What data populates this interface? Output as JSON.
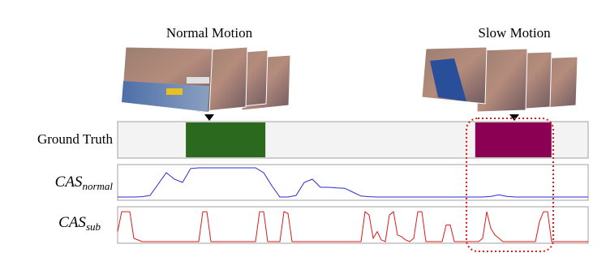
{
  "labels": {
    "normal_motion": "Normal Motion",
    "slow_motion": "Slow Motion",
    "ground_truth": "Ground Truth",
    "cas_normal": {
      "base": "CAS",
      "sub": "normal"
    },
    "cas_sub": {
      "base": "CAS",
      "sub": "sub"
    }
  },
  "timeline": {
    "xlim": [
      0,
      1
    ]
  },
  "ground_truth": {
    "segments": [
      {
        "start": 0.145,
        "end": 0.314,
        "color": "#2b6a1e"
      },
      {
        "start": 0.76,
        "end": 0.922,
        "color": "#8c0054"
      }
    ]
  },
  "cas_normal": {
    "color": "#2b2bd0",
    "ylim": [
      0,
      1
    ],
    "values": [
      0.05,
      0.05,
      0.05,
      0.06,
      0.1,
      0.45,
      0.8,
      0.6,
      0.5,
      0.93,
      0.95,
      0.95,
      0.95,
      0.95,
      0.95,
      0.95,
      0.95,
      0.95,
      0.8,
      0.4,
      0.05,
      0.05,
      0.1,
      0.5,
      0.6,
      0.35,
      0.35,
      0.33,
      0.32,
      0.2,
      0.08,
      0.06,
      0.05,
      0.05,
      0.05,
      0.05,
      0.05,
      0.05,
      0.05,
      0.05,
      0.05,
      0.05,
      0.05,
      0.05,
      0.05,
      0.05,
      0.07,
      0.12,
      0.07,
      0.05,
      0.05,
      0.05,
      0.05,
      0.05,
      0.05,
      0.05,
      0.05,
      0.05,
      0.05
    ]
  },
  "cas_sub": {
    "color": "#e01818",
    "ylim": [
      0,
      1
    ],
    "values": [
      0.3,
      0.9,
      0.9,
      0.9,
      0.1,
      0.05,
      0,
      0,
      0,
      0,
      0,
      0,
      0,
      0,
      0,
      0,
      0,
      0,
      0,
      0,
      0,
      0.9,
      0.9,
      0,
      0,
      0,
      0,
      0,
      0,
      0,
      0,
      0,
      0,
      0,
      0,
      0.9,
      0.9,
      0,
      0,
      0,
      0,
      0.9,
      0.85,
      0,
      0,
      0,
      0,
      0,
      0,
      0,
      0,
      0,
      0,
      0,
      0,
      0,
      0,
      0,
      0,
      0,
      0,
      0.9,
      0.8,
      0.1,
      0.3,
      0.05,
      0,
      0.8,
      0.9,
      0.2,
      0.15,
      0.05,
      0,
      0.1,
      0.9,
      0.9,
      0,
      0,
      0,
      0,
      0,
      0.5,
      0.5,
      0,
      0,
      0,
      0,
      0,
      0,
      0,
      0.1,
      0.9,
      0.4,
      0.2,
      0.1,
      0,
      0,
      0,
      0,
      0,
      0,
      0,
      0,
      0,
      0.6,
      0.9,
      0.9,
      0,
      0,
      0,
      0,
      0,
      0,
      0,
      0,
      0,
      0
    ]
  }
}
